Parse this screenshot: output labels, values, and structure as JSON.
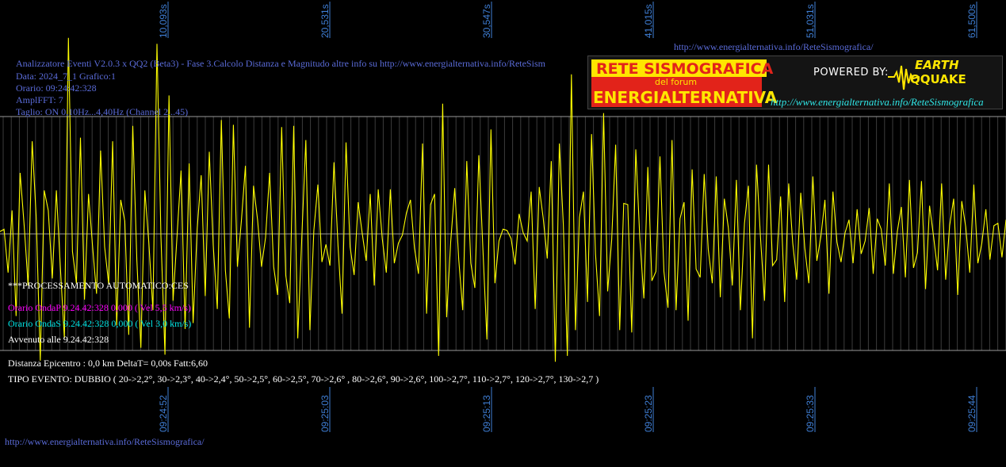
{
  "header": {
    "line1": "Analizzatore Eventi V2.0.3 x QQ2 (Beta3) - Fase 3.Calcolo Distanza e Magnitudo altre info su http://www.energialternativa.info/ReteSism",
    "line2": "Data: 2024_7_1 Grafico:1",
    "line3": "Orario: 09:24:42:328",
    "line4": "AmplFFT: 7",
    "line5": "Taglio: ON 0,10Hz...4,40Hz       (Channel 2...45)"
  },
  "top_link": "http://www.energialternativa.info/ReteSismografica/",
  "bottom_link": "http://www.energialternativa.info/ReteSismografica/",
  "banner": {
    "title1": "RETE SISMOGRAFICA",
    "subtitle": "del forum",
    "title2": "ENERGIALTERNATIVA",
    "powered": "POWERED BY:",
    "brand1": "EARTH",
    "brand2": "QQUAKE",
    "link": "http://www.energialternativa.info/ReteSismografica"
  },
  "info": {
    "processing": "***PROCESSAMENTO AUTOMATICO:CES",
    "p_wave": "Orario OndaP 9.24.42:328  0,000 ( Vel 5,5 km/s)",
    "s_wave": "Orario OndaS 9.24.42:328  0,000 ( Vel 3,0 km/s)",
    "occurred": "Avvenuto alle 9.24.42:328",
    "distance": "Distanza Epicentro : 0,0 km DeltaT= 0,00s  Fatt:6,60",
    "event_type": "TIPO EVENTO: DUBBIO ( 20->2,2°, 30->2,3°, 40->2,4°, 50->2,5°, 60->2,5°, 70->2,6° , 80->2,6°, 90->2,6°, 100->2,7°, 110->2,7°, 120->2,7°, 130->2,7 )"
  },
  "colors": {
    "background": "#000000",
    "trace": "#ffff00",
    "grid": "#3c3c3c",
    "ref_line": "#9a9a9a",
    "axis_label": "#3f7fd6",
    "header_text": "#5a6bd8",
    "p_wave": "#ff00ff",
    "s_wave": "#00e5e5",
    "info_text": "#ffffff"
  },
  "chart_data": {
    "type": "line",
    "title": "",
    "xlabel": "",
    "ylabel": "",
    "grid": true,
    "elapsed_tick_labels": [
      "10,093s",
      "20,531s",
      "30,547s",
      "41,015s",
      "51,031s",
      "61,500s"
    ],
    "time_tick_labels": [
      "09:24:52",
      "09:25:03",
      "09:25:13",
      "09:25:23",
      "09:25:33",
      "09:25:44"
    ],
    "x_range_s": [
      0,
      62.1
    ],
    "series": [
      {
        "values": [
          0.02,
          0.04,
          -0.33,
          0.2,
          -0.7,
          0.52,
          0.07,
          -0.44,
          0.79,
          0.14,
          -1.08,
          0.37,
          0.2,
          -0.38,
          0.37,
          -0.28,
          -0.89,
          1.67,
          -0.15,
          -0.42,
          0.82,
          -0.56,
          0.34,
          -0.1,
          -0.51,
          0.71,
          -0.11,
          -0.43,
          0.79,
          -0.78,
          0.29,
          0.11,
          -0.86,
          0.92,
          -0.22,
          -0.97,
          0.37,
          -0.08,
          -0.65,
          1.62,
          -0.02,
          -1.03,
          1.18,
          -0.57,
          -0.02,
          0.54,
          -0.81,
          0.6,
          -0.76,
          0.04,
          0.5,
          -0.53,
          0.7,
          -0.1,
          -0.64,
          0.97,
          -0.31,
          -0.72,
          0.93,
          -0.28,
          0.12,
          0.58,
          -0.8,
          0.41,
          0.12,
          -0.28,
          -0.03,
          0.52,
          -0.28,
          -0.52,
          0.91,
          -0.35,
          -0.59,
          0.92,
          -0.89,
          -0.03,
          0.8,
          -0.82,
          0.03,
          0.42,
          -0.24,
          -0.09,
          -0.27,
          0.61,
          -0.1,
          -0.68,
          0.78,
          -0.11,
          -0.35,
          0.27,
          0.01,
          -0.23,
          0.34,
          -0.44,
          0.38,
          -0.04,
          -0.33,
          0.38,
          -0.25,
          -0.08,
          -0.01,
          0.18,
          0.29,
          -0.12,
          -0.34,
          0.77,
          -0.68,
          0.25,
          0.34,
          -1.04,
          1.11,
          -0.71,
          -0.07,
          0.39,
          -0.22,
          -0.65,
          0.62,
          -0.25,
          -0.46,
          0.67,
          -0.12,
          -0.9,
          0.89,
          -0.42,
          -0.06,
          0.04,
          0.03,
          -0.04,
          -0.26,
          0.17,
          0.01,
          -0.06,
          0.36,
          -0.64,
          0.4,
          0.13,
          -0.21,
          0.62,
          -1.09,
          0.77,
          0.08,
          -1.04,
          1.36,
          -0.82,
          0.14,
          0.36,
          -0.58,
          0.85,
          -0.17,
          -0.7,
          1.03,
          -0.49,
          -0.05,
          0.76,
          -0.82,
          0.26,
          0.25,
          -0.84,
          0.72,
          -0.04,
          -0.55,
          0.57,
          -0.4,
          -0.32,
          0.66,
          -0.32,
          -0.63,
          0.8,
          -0.65,
          0.13,
          0.27,
          -0.74,
          0.55,
          -0.3,
          -0.37,
          0.51,
          -0.13,
          -0.42,
          0.49,
          -0.54,
          0.3,
          0.05,
          -0.44,
          0.46,
          -0.65,
          0.09,
          0.41,
          -0.89,
          0.59,
          -0.04,
          -0.57,
          0.59,
          -0.27,
          -0.22,
          0.32,
          -0.58,
          0.43,
          -0.08,
          -0.39,
          0.35,
          -0.12,
          -0.42,
          0.49,
          -0.23,
          -0.02,
          0.29,
          -0.51,
          0.36,
          -0.07,
          -0.24,
          0.01,
          0.12,
          -0.25,
          0.21,
          -0.17,
          -0.06,
          0.22,
          -0.34,
          0.13,
          0.04,
          -0.27,
          0.43,
          -0.34,
          0.02,
          0.23,
          -0.37,
          0.46,
          -0.29,
          -0.16,
          0.45,
          -0.47,
          0.24,
          -0.02,
          -0.31,
          0.43,
          -0.39,
          0.07,
          0.3,
          -0.52,
          0.28,
          0.06,
          -0.33,
          0.42,
          -0.25,
          -0.08,
          0.21,
          -0.22,
          0.07,
          0.09,
          -0.2,
          0.12
        ]
      }
    ]
  }
}
